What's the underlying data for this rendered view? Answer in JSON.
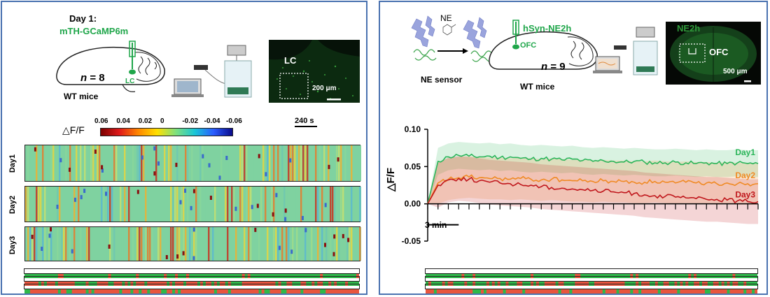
{
  "panel_a": {
    "day_label": "Day 1:",
    "sensor": "mTH-GCaMP6m",
    "region_label": "LC",
    "n_label": "n",
    "n_value": "= 8",
    "mice": "WT mice",
    "micro_region": "LC",
    "scale_bar": "200 μm",
    "colorbar_label": "△F/F",
    "colorbar_ticks": [
      "0.06",
      "0.04",
      "0.02",
      "0",
      "-0.02",
      "-0.04",
      "-0.06"
    ],
    "time_scale": "240 s",
    "rows": [
      "Day1",
      "Day2",
      "Day3"
    ]
  },
  "panel_b": {
    "ne_label": "NE",
    "sensor_caption": "NE sensor",
    "virus": "hSyn-NE2h",
    "region_label": "OFC",
    "n_label": "n",
    "n_value": "= 9",
    "mice": "WT mice",
    "micro_title": "NE2h",
    "micro_region": "OFC",
    "scale_bar": "500 μm",
    "time_scale": "3 min"
  },
  "colors": {
    "border": "#4a72b0",
    "green_text": "#1fa64a",
    "day1": "#2bb55a",
    "day2": "#f08a24",
    "day3": "#c0161b"
  },
  "chart_data": {
    "type": "line",
    "ylabel": "△F/F",
    "ylim": [
      -0.05,
      0.1
    ],
    "yticks": [
      "0.10",
      "0.05",
      "0.00",
      "-0.05"
    ],
    "x_unit": "min",
    "series": [
      {
        "name": "Day1",
        "x": [
          0,
          1,
          2,
          3,
          4,
          5,
          6,
          7,
          8,
          9,
          10,
          11,
          12,
          13,
          14,
          15,
          16,
          17,
          18,
          19,
          20,
          21,
          22,
          23,
          24,
          25,
          26,
          27,
          28,
          29,
          30,
          31,
          32
        ],
        "values": [
          0.0,
          0.057,
          0.063,
          0.065,
          0.064,
          0.063,
          0.064,
          0.062,
          0.063,
          0.061,
          0.06,
          0.061,
          0.06,
          0.059,
          0.06,
          0.058,
          0.057,
          0.058,
          0.057,
          0.056,
          0.057,
          0.056,
          0.055,
          0.055,
          0.056,
          0.055,
          0.054,
          0.055,
          0.054,
          0.054,
          0.055,
          0.054,
          0.054
        ]
      },
      {
        "name": "Day2",
        "x": [
          0,
          1,
          2,
          3,
          4,
          5,
          6,
          7,
          8,
          9,
          10,
          11,
          12,
          13,
          14,
          15,
          16,
          17,
          18,
          19,
          20,
          21,
          22,
          23,
          24,
          25,
          26,
          27,
          28,
          29,
          30,
          31,
          32
        ],
        "values": [
          0.0,
          0.028,
          0.033,
          0.035,
          0.036,
          0.035,
          0.034,
          0.034,
          0.033,
          0.034,
          0.033,
          0.032,
          0.033,
          0.032,
          0.031,
          0.031,
          0.03,
          0.031,
          0.03,
          0.03,
          0.029,
          0.029,
          0.03,
          0.029,
          0.028,
          0.029,
          0.028,
          0.028,
          0.027,
          0.028,
          0.027,
          0.027,
          0.027
        ]
      },
      {
        "name": "Day3",
        "x": [
          0,
          1,
          2,
          3,
          4,
          5,
          6,
          7,
          8,
          9,
          10,
          11,
          12,
          13,
          14,
          15,
          16,
          17,
          18,
          19,
          20,
          21,
          22,
          23,
          24,
          25,
          26,
          27,
          28,
          29,
          30,
          31,
          32
        ],
        "values": [
          0.0,
          0.025,
          0.032,
          0.034,
          0.033,
          0.031,
          0.029,
          0.028,
          0.027,
          0.026,
          0.025,
          0.023,
          0.022,
          0.021,
          0.02,
          0.019,
          0.018,
          0.017,
          0.016,
          0.015,
          0.014,
          0.012,
          0.011,
          0.01,
          0.009,
          0.008,
          0.007,
          0.006,
          0.006,
          0.005,
          0.004,
          0.003,
          0.003
        ]
      }
    ]
  }
}
